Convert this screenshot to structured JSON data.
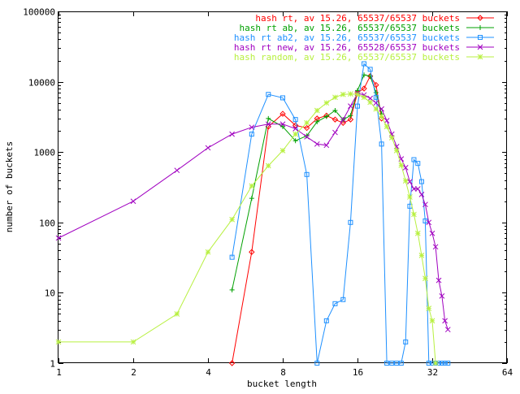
{
  "chart_data": {
    "type": "line",
    "title": "",
    "xlabel": "bucket length",
    "ylabel": "number of buckets",
    "xscale": "log2",
    "yscale": "log10",
    "xlim": [
      1,
      64
    ],
    "ylim": [
      1,
      100000
    ],
    "xticks": [
      1,
      2,
      4,
      8,
      16,
      32,
      64
    ],
    "xtick_labels": [
      "1",
      "2",
      "4",
      "8",
      "16",
      "32",
      "64"
    ],
    "yticks": [
      1,
      10,
      100,
      1000,
      10000,
      100000
    ],
    "ytick_labels": [
      "1",
      "10",
      "100",
      "1000",
      "10000",
      "100000"
    ],
    "grid": false,
    "legend_position": "top-right",
    "series": [
      {
        "name": "hash rt, av 15.26, 65537/65537 buckets",
        "color": "#ff0000",
        "marker": "diamond",
        "x": [
          5,
          6,
          7,
          8,
          9,
          10,
          11,
          12,
          13,
          14,
          15,
          16,
          17,
          18,
          19,
          20
        ],
        "y": [
          1,
          38,
          2300,
          3500,
          2400,
          2200,
          3000,
          3300,
          2900,
          2600,
          2900,
          7000,
          8000,
          12000,
          9000,
          3000
        ]
      },
      {
        "name": "hash rt ab, av 15.26, 65537/65537 buckets",
        "color": "#00a000",
        "marker": "plus",
        "x": [
          5,
          6,
          7,
          8,
          9,
          10,
          11,
          12,
          13,
          14,
          15,
          16,
          17,
          18,
          19,
          20
        ],
        "y": [
          11,
          220,
          3000,
          2300,
          1450,
          1700,
          2700,
          3200,
          3900,
          2900,
          3300,
          7500,
          12500,
          12000,
          7000,
          3500
        ]
      },
      {
        "name": "hash rt ab2, av 15.26, 65537/65537 buckets",
        "color": "#1e90ff",
        "marker": "square",
        "x": [
          5,
          6,
          7,
          8,
          9,
          10,
          11,
          12,
          13,
          14,
          15,
          16,
          17,
          18,
          19,
          20,
          21,
          22,
          23,
          24,
          25,
          26,
          27,
          28,
          29,
          30,
          31,
          32,
          33,
          34,
          35,
          36,
          37
        ],
        "y": [
          32,
          1800,
          6600,
          5900,
          2900,
          480,
          1,
          4,
          7,
          8,
          100,
          4500,
          18000,
          15000,
          6000,
          1300,
          1,
          1,
          1,
          1,
          2,
          170,
          780,
          690,
          380,
          105,
          1,
          1,
          1,
          1,
          1,
          1,
          1
        ]
      },
      {
        "name": "hash rt new, av 15.26, 65528/65537 buckets",
        "color": "#a000c0",
        "marker": "x",
        "x": [
          1,
          2,
          3,
          4,
          5,
          6,
          7,
          8,
          9,
          10,
          11,
          12,
          13,
          14,
          15,
          16,
          17,
          18,
          19,
          20,
          21,
          22,
          23,
          24,
          25,
          26,
          27,
          28,
          29,
          30,
          31,
          32,
          33,
          34,
          35,
          36,
          37
        ],
        "y": [
          60,
          200,
          550,
          1150,
          1800,
          2250,
          2500,
          2500,
          2150,
          1650,
          1300,
          1250,
          1900,
          2900,
          4500,
          6800,
          6500,
          5800,
          5000,
          4100,
          2800,
          1800,
          1200,
          800,
          600,
          380,
          300,
          300,
          250,
          180,
          100,
          70,
          45,
          15,
          9,
          4,
          3
        ]
      },
      {
        "name": "hash random, av 15.26, 65537/65537 buckets",
        "color": "#b8f040",
        "marker": "star",
        "x": [
          1,
          2,
          3,
          4,
          5,
          6,
          7,
          8,
          9,
          10,
          11,
          12,
          13,
          14,
          15,
          16,
          17,
          18,
          19,
          20,
          21,
          22,
          23,
          24,
          25,
          26,
          27,
          28,
          29,
          30,
          31,
          32,
          33
        ],
        "y": [
          2,
          2,
          5,
          38,
          110,
          330,
          640,
          1050,
          1800,
          2600,
          3900,
          5000,
          6000,
          6600,
          6700,
          6600,
          6000,
          5100,
          4100,
          3200,
          2300,
          1600,
          1050,
          650,
          390,
          230,
          130,
          70,
          34,
          16,
          6,
          4,
          1
        ]
      }
    ]
  }
}
